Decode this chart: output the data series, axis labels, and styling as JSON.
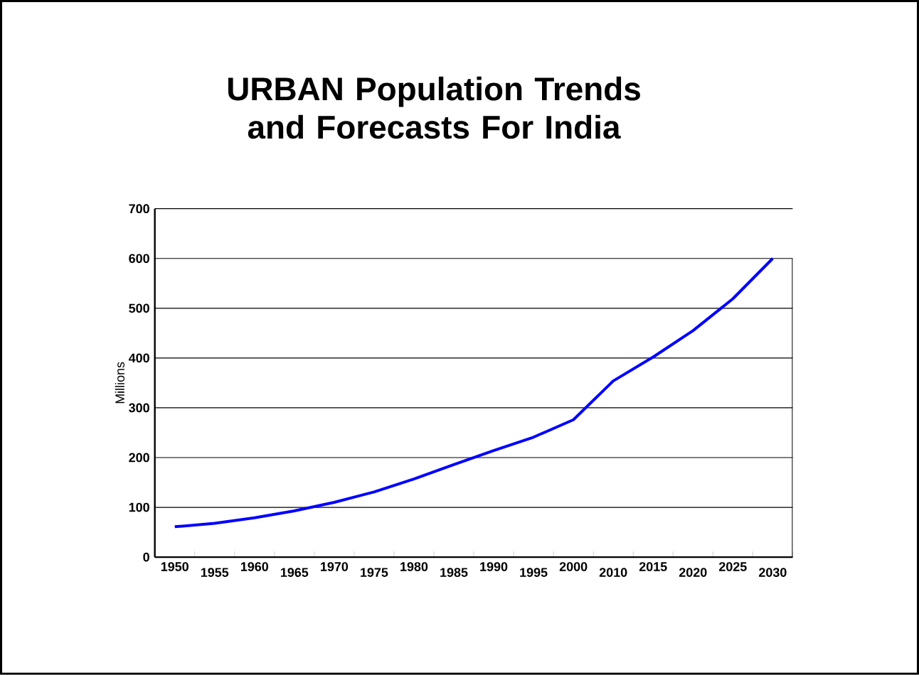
{
  "chart_data": {
    "type": "line",
    "title": "URBAN Population Trends and Forecasts For India",
    "ylabel": "Millions",
    "categories": [
      "1950",
      "1955",
      "1960",
      "1965",
      "1970",
      "1975",
      "1980",
      "1985",
      "1990",
      "1995",
      "2000",
      "2010",
      "2015",
      "2020",
      "2025",
      "2030"
    ],
    "series": [
      {
        "color": "#0000ff",
        "values": [
          61,
          68,
          79,
          93,
          110,
          131,
          157,
          186,
          214,
          241,
          276,
          354,
          402,
          455,
          519,
          600
        ]
      }
    ],
    "ylim": [
      0,
      700
    ],
    "yticks": [
      0,
      100,
      200,
      300,
      400,
      500,
      600,
      700
    ],
    "grid": "y",
    "legend": false,
    "marker": "none",
    "line_style": "solid"
  }
}
